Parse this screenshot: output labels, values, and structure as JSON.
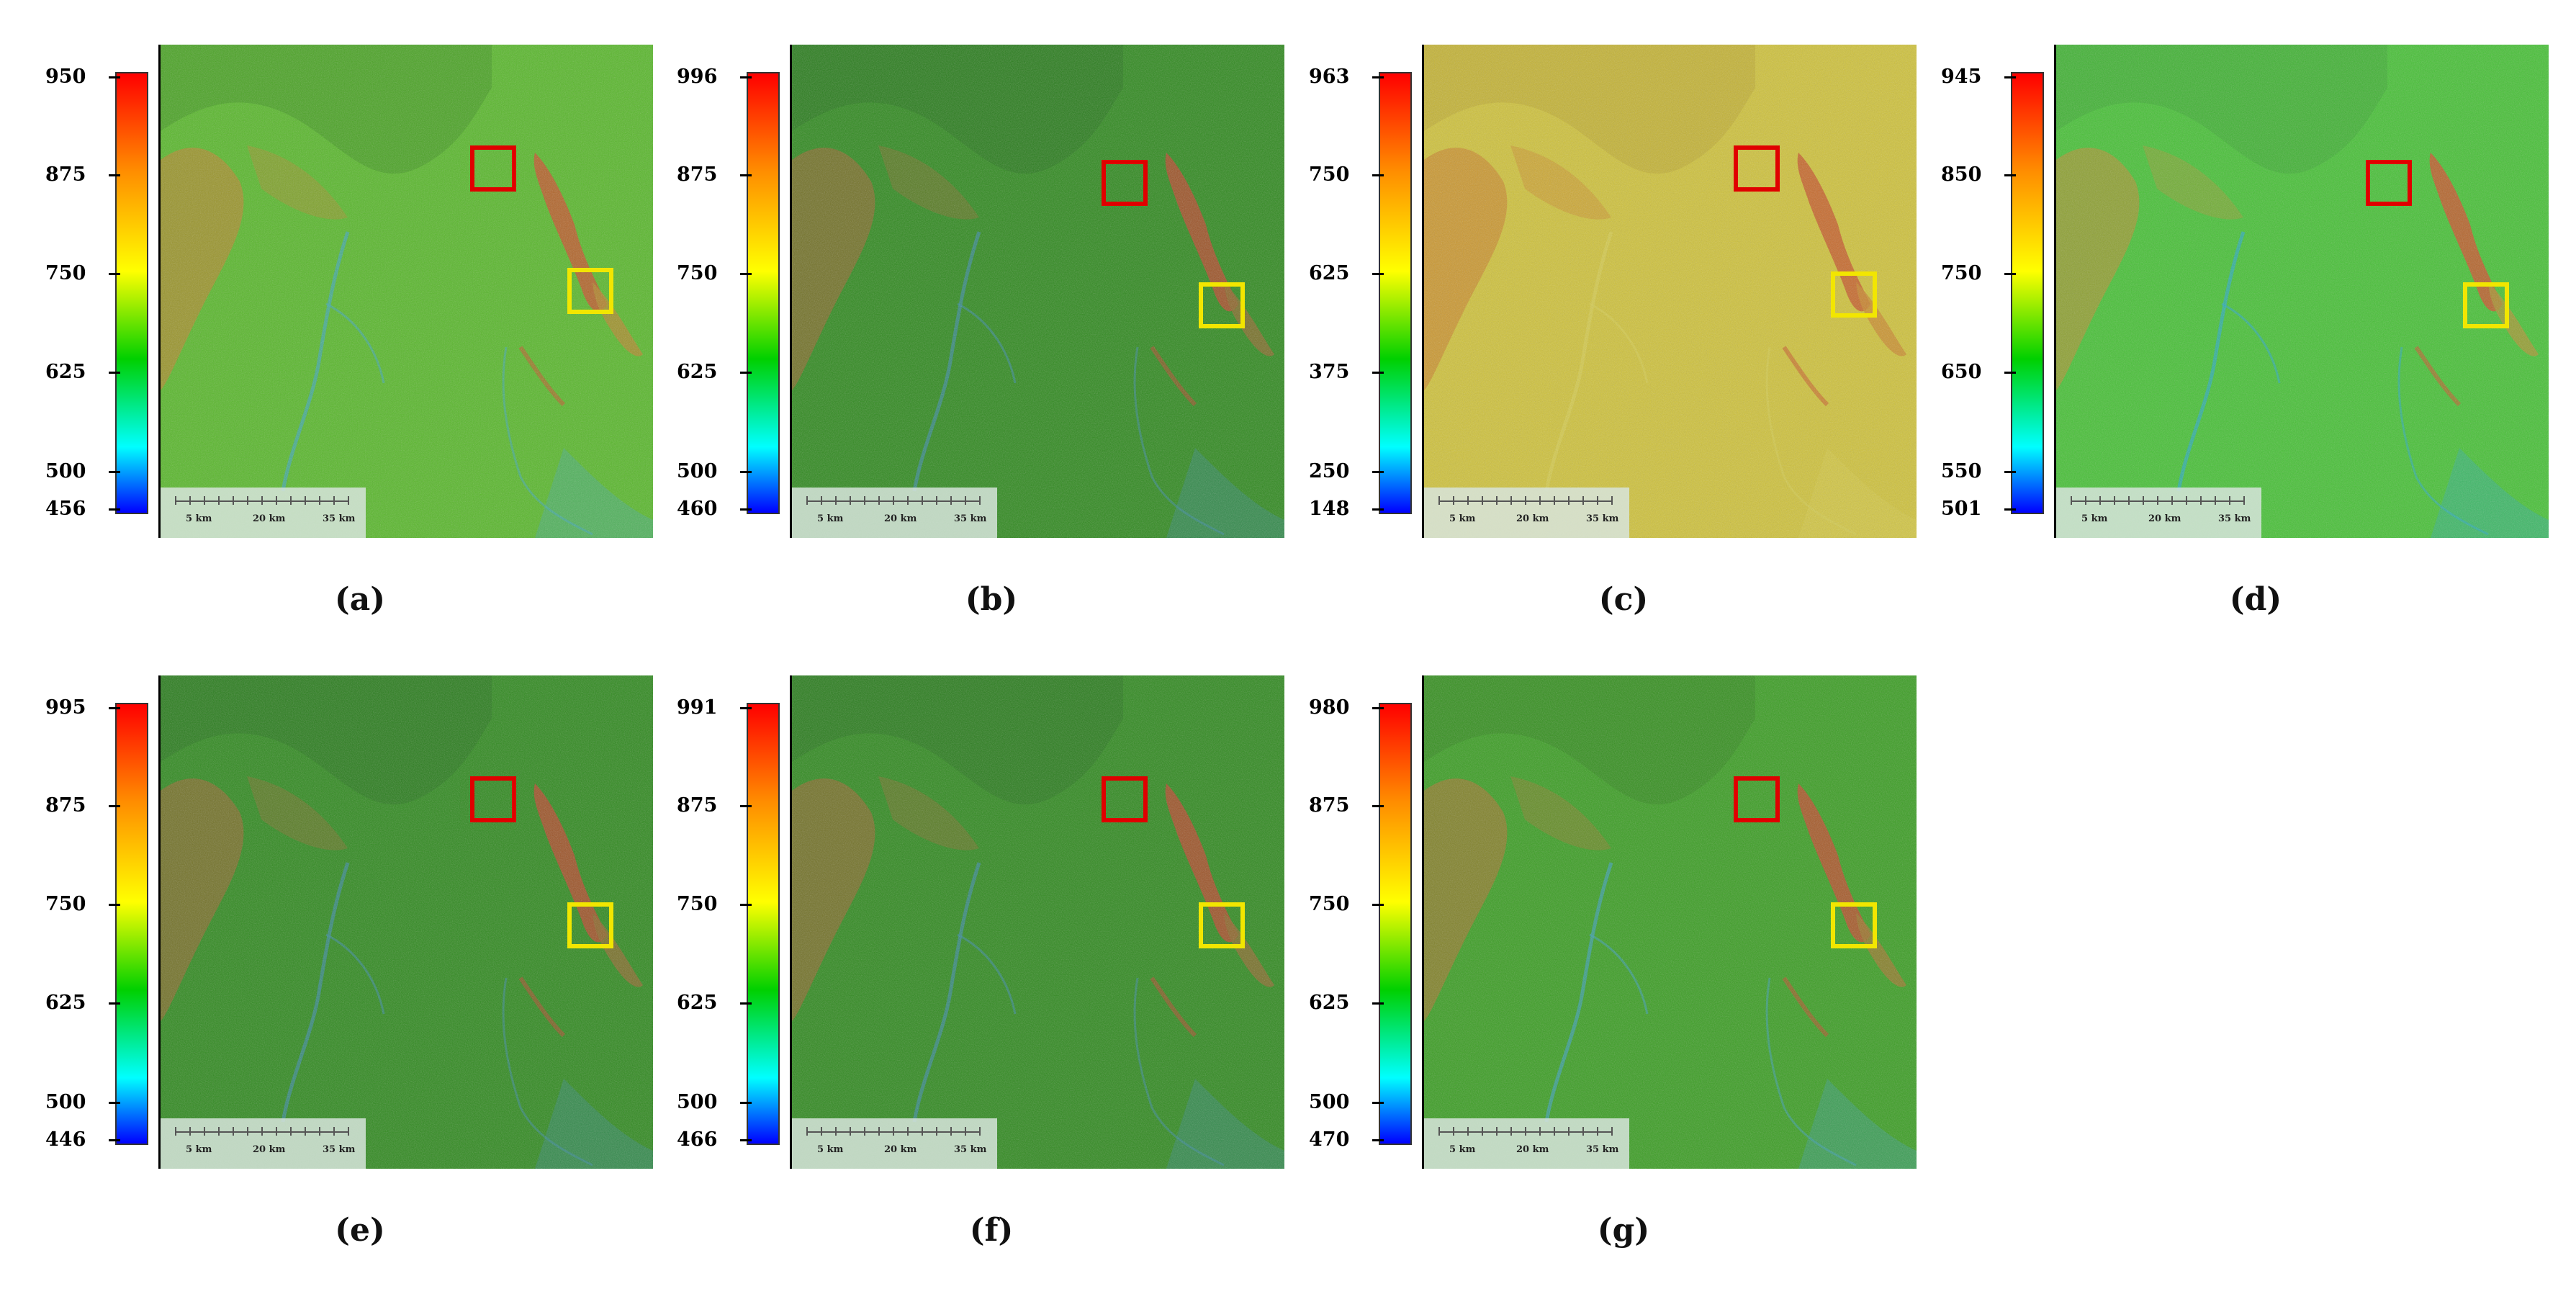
{
  "panels": [
    {
      "label": "(a)",
      "ticks": [
        "950",
        "875",
        "750",
        "625",
        "500",
        "456"
      ],
      "theme": "bright"
    },
    {
      "label": "(b)",
      "ticks": [
        "996",
        "875",
        "750",
        "625",
        "500",
        "460"
      ],
      "theme": "dark"
    },
    {
      "label": "(c)",
      "ticks": [
        "963",
        "750",
        "625",
        "375",
        "250",
        "148"
      ],
      "theme": "yellow"
    },
    {
      "label": "(d)",
      "ticks": [
        "945",
        "850",
        "750",
        "650",
        "550",
        "501"
      ],
      "theme": "cyan"
    },
    {
      "label": "(e)",
      "ticks": [
        "995",
        "875",
        "750",
        "625",
        "500",
        "446"
      ],
      "theme": "dark"
    },
    {
      "label": "(f)",
      "ticks": [
        "991",
        "875",
        "750",
        "625",
        "500",
        "466"
      ],
      "theme": "dark"
    },
    {
      "label": "(g)",
      "ticks": [
        "980",
        "875",
        "750",
        "625",
        "500",
        "470"
      ],
      "theme": "mid"
    }
  ],
  "scalebar": {
    "labels": [
      "5 km",
      "20 km",
      "35 km"
    ]
  },
  "colors": {
    "red_marker": "#e00000",
    "yellow_marker": "#f2e600"
  }
}
